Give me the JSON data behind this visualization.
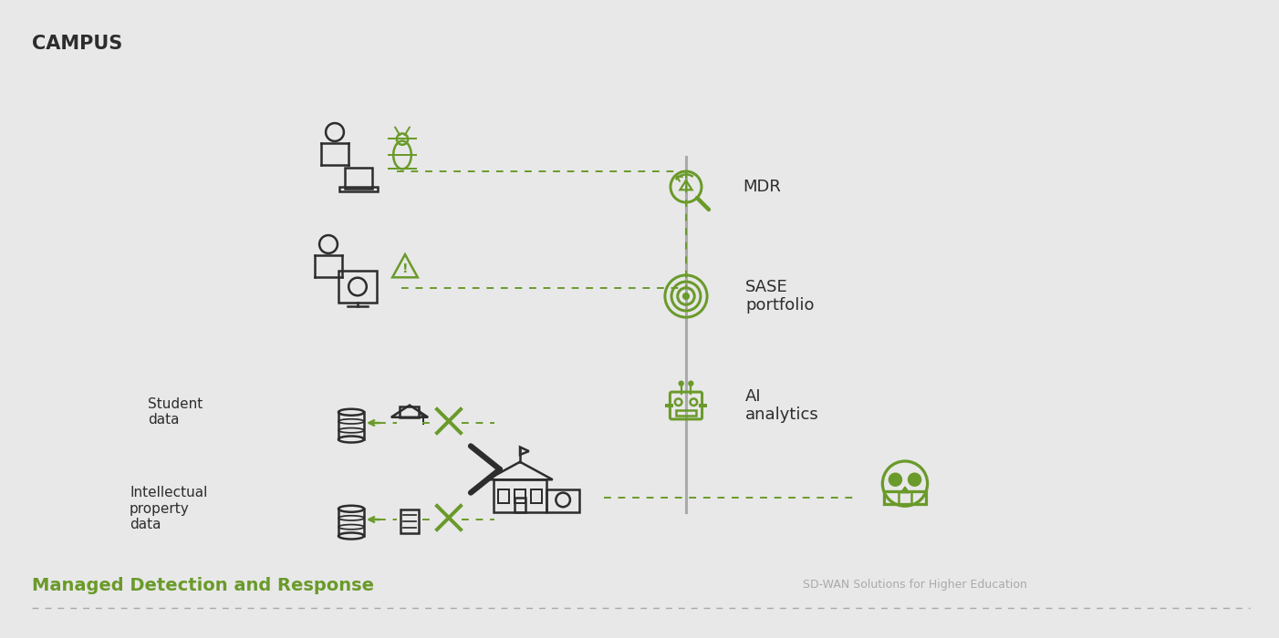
{
  "title": "CAMPUS",
  "bg_color": "#e8e8e8",
  "dark_color": "#2d2d2d",
  "green_color": "#6a9a2a",
  "bottom_label": "Managed Detection and Response",
  "sd_wan_label": "SD-WAN Solutions for Higher Education",
  "labels": {
    "student_data": "Student\ndata",
    "ip_data": "Intellectual\nproperty\ndata",
    "mdr": "MDR",
    "sase": "SASE\nportfolio",
    "ai": "AI\nanalytics"
  },
  "figsize": [
    14.02,
    7.0
  ],
  "dpi": 100
}
